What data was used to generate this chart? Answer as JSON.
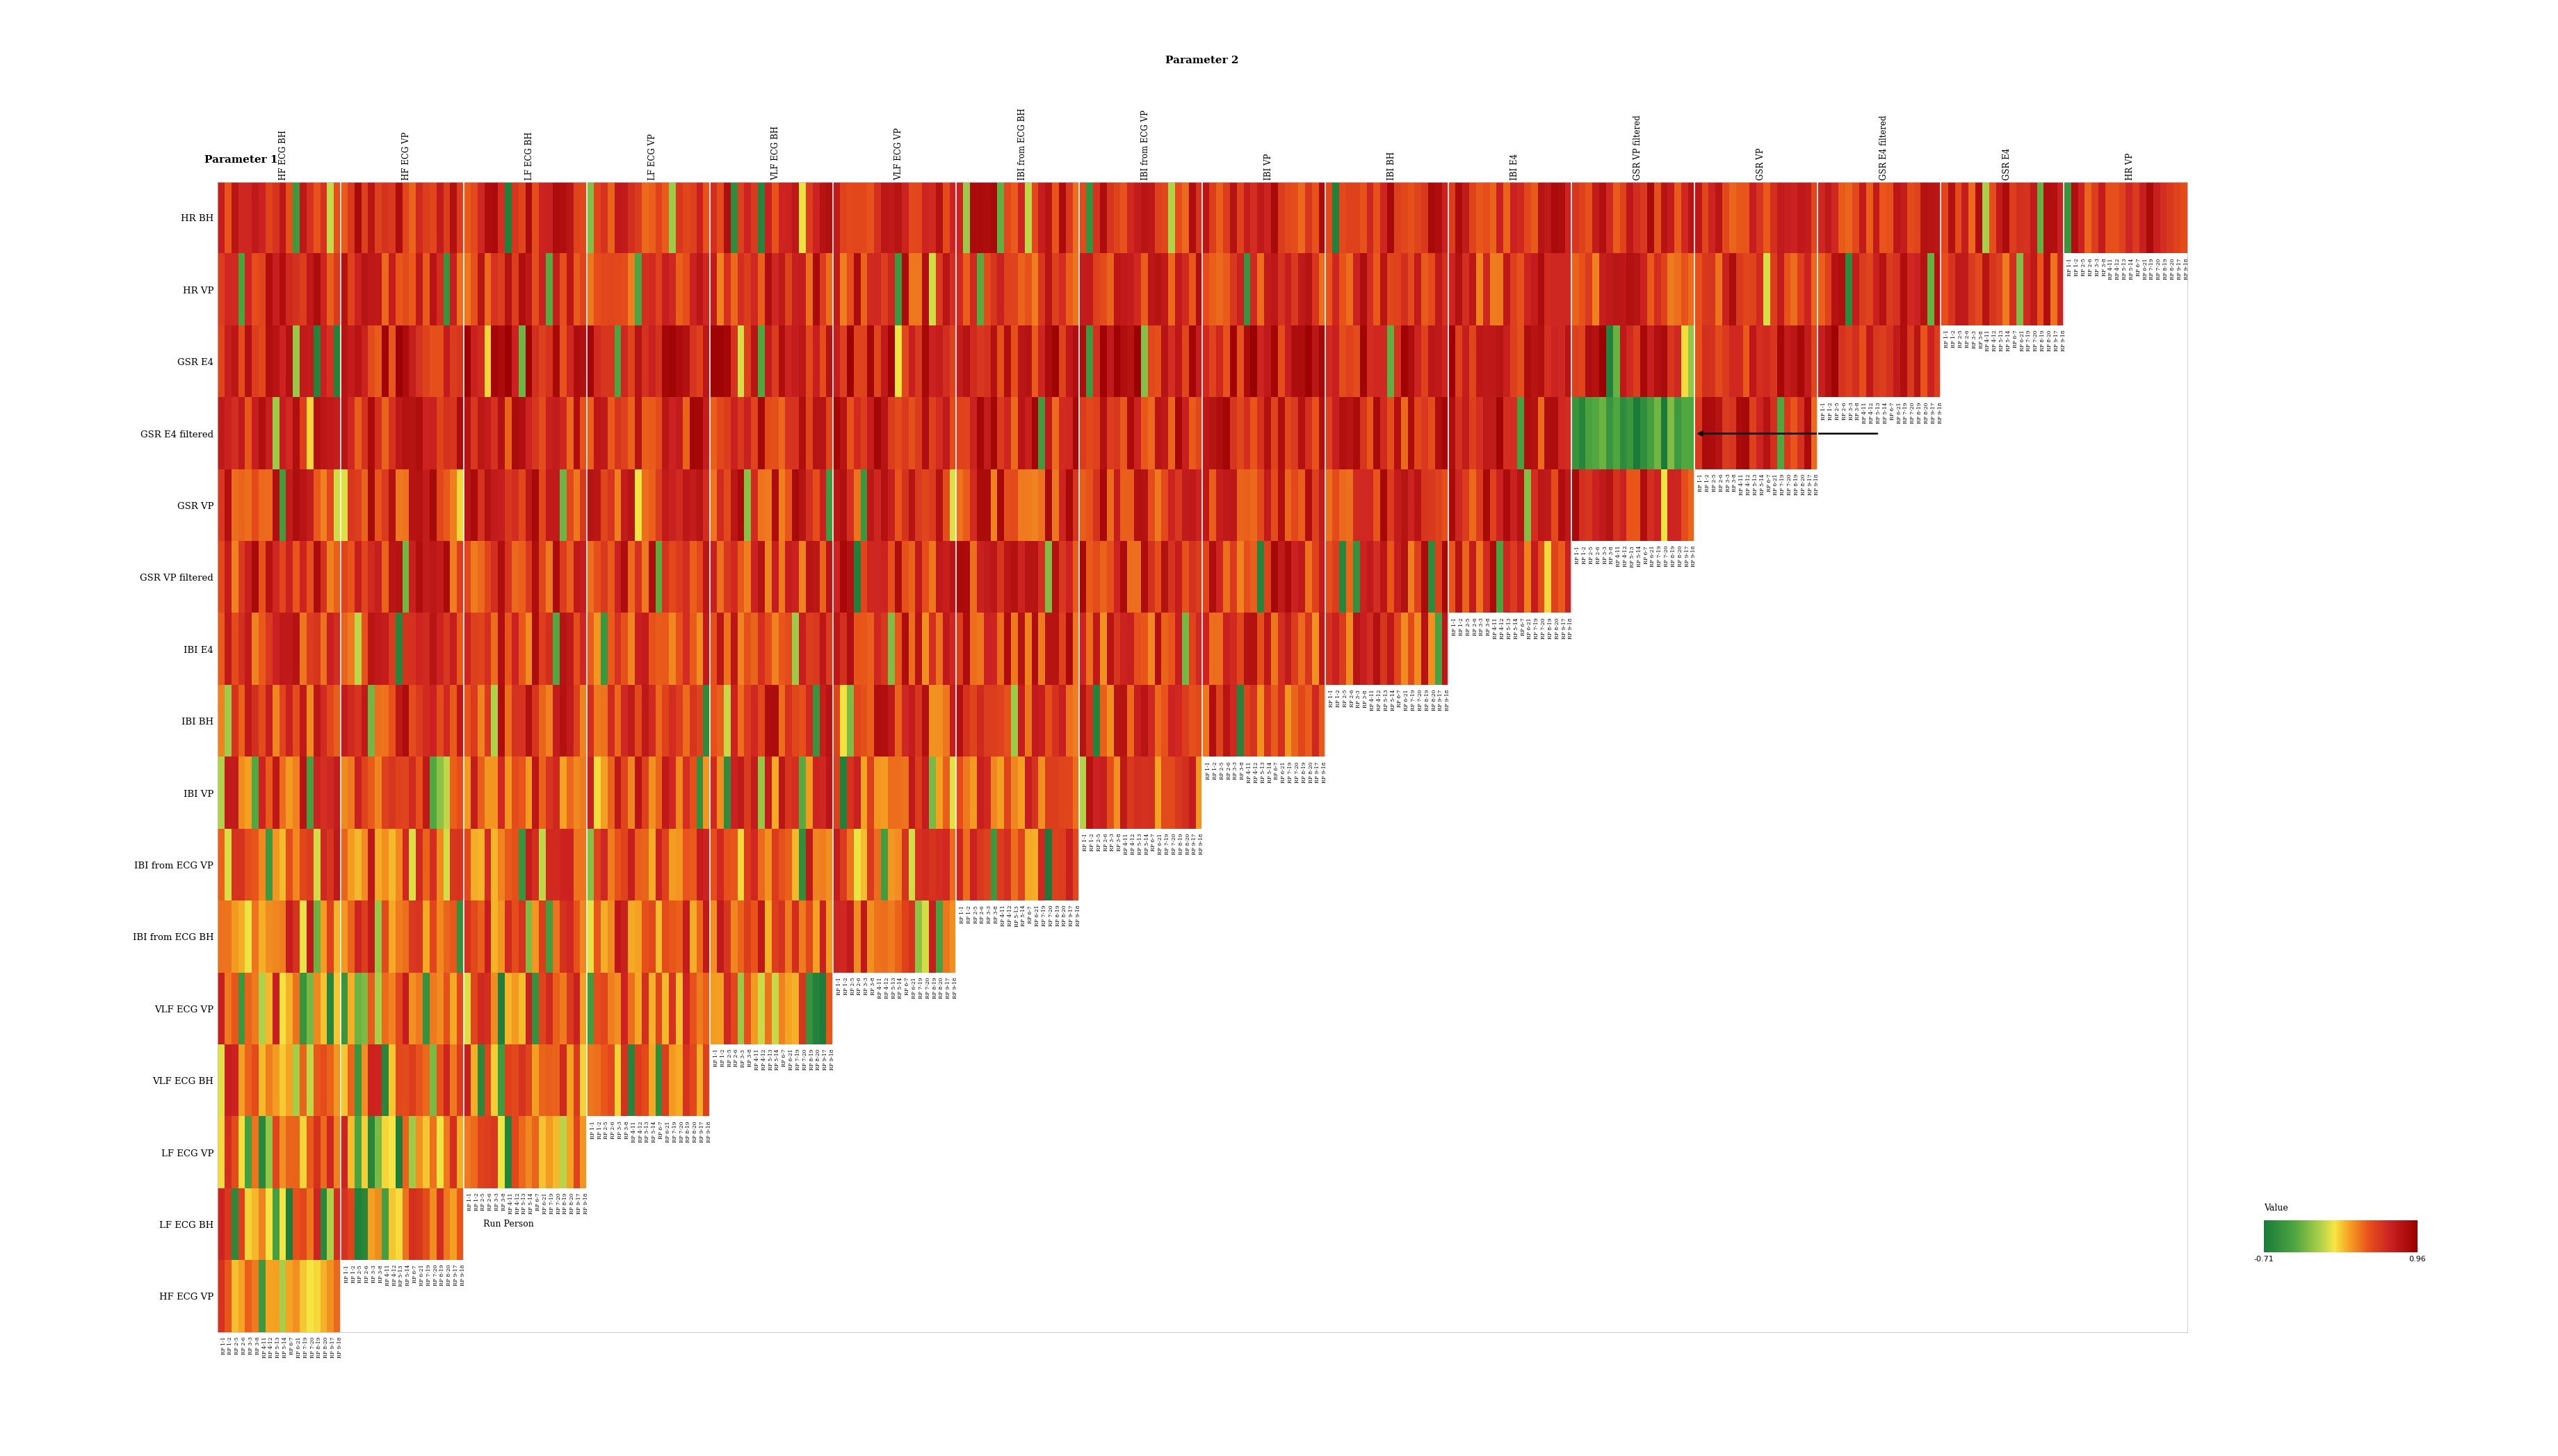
{
  "param1_labels": [
    "HR BH",
    "HR VP",
    "GSR E4",
    "GSR E4 filtered",
    "GSR VP",
    "GSR VP filtered",
    "IBI E4",
    "IBI BH",
    "IBI VP",
    "IBI from ECG VP",
    "IBI from ECG BH",
    "VLF ECG VP",
    "VLF ECG BH",
    "LF ECG VP",
    "LF ECG BH",
    "HF ECG VP"
  ],
  "param2_labels": [
    "HF ECG BH",
    "HF ECG VP",
    "LF ECG BH",
    "LF ECG VP",
    "VLF ECG BH",
    "VLF ECG VP",
    "IBI from ECG BH",
    "IBI from ECG VP",
    "IBI VP",
    "IBI BH",
    "IBI E4",
    "GSR VP filtered",
    "GSR VP",
    "GSR E4 filtered",
    "GSR E4",
    "HR VP"
  ],
  "run_person_labels": [
    "RP 1-1",
    "RP 1-2",
    "RP 2-5",
    "RP 2-6",
    "RP 3-3",
    "RP 3-8",
    "RP 4-11",
    "RP 4-12",
    "RP 5-13",
    "RP 5-14",
    "RP 6-7",
    "RP 6-21",
    "RP 7-19",
    "RP 7-20",
    "RP 8-19",
    "RP 8-20",
    "RP 9-17",
    "RP 9-18"
  ],
  "vmin": -0.71,
  "vmax": 0.96,
  "colorbar_label": "Value",
  "background": "#ffffff",
  "arrow_row": 3,
  "arrow_col_param": 11,
  "run_person_label_row": 14,
  "separator_color": "#d0d0d0",
  "nan_color": "#ffffff"
}
